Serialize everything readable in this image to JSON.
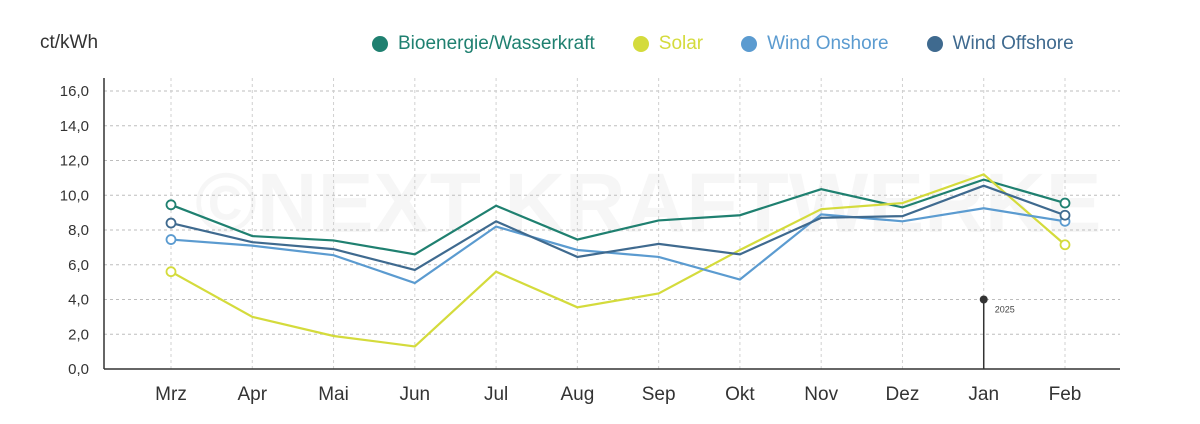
{
  "chart_data": {
    "type": "line",
    "title": "",
    "xlabel": "",
    "ylabel": "ct/kWh",
    "ylim": [
      0,
      16
    ],
    "yticks": [
      "0,0",
      "2,0",
      "4,0",
      "6,0",
      "8,0",
      "10,0",
      "12,0",
      "14,0",
      "16,0"
    ],
    "ytick_values": [
      0,
      2,
      4,
      6,
      8,
      10,
      12,
      14,
      16
    ],
    "grid": true,
    "legend_position": "top-right",
    "categories": [
      "Mrz",
      "Apr",
      "Mai",
      "Jun",
      "Jul",
      "Aug",
      "Sep",
      "Okt",
      "Nov",
      "Dez",
      "Jan",
      "Feb"
    ],
    "series": [
      {
        "name": "Bioenergie/Wasserkraft",
        "color": "#1f8070",
        "values": [
          9.45,
          7.65,
          7.4,
          6.6,
          9.4,
          7.45,
          8.55,
          8.85,
          10.35,
          9.3,
          10.9,
          9.55
        ]
      },
      {
        "name": "Solar",
        "color": "#d4db3c",
        "values": [
          5.6,
          3.0,
          1.9,
          1.3,
          5.6,
          3.55,
          4.35,
          6.85,
          9.2,
          9.55,
          11.2,
          7.15
        ]
      },
      {
        "name": "Wind Onshore",
        "color": "#5b9bd0",
        "values": [
          7.45,
          7.1,
          6.55,
          4.95,
          8.2,
          6.85,
          6.45,
          5.15,
          8.9,
          8.5,
          9.25,
          8.5
        ]
      },
      {
        "name": "Wind Offshore",
        "color": "#3f6a8f",
        "values": [
          8.4,
          7.3,
          6.9,
          5.7,
          8.5,
          6.45,
          7.2,
          6.6,
          8.7,
          8.8,
          10.55,
          8.85
        ]
      }
    ],
    "annotations": [
      {
        "text": "2025",
        "category": "Jan",
        "value": 4.0
      }
    ],
    "watermark": "©NEXT KRAFTWERKE"
  }
}
